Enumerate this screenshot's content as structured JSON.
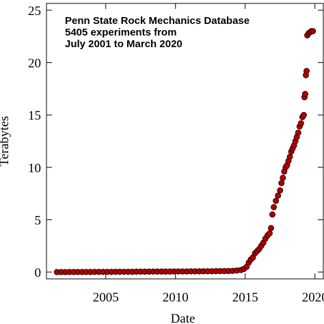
{
  "chart_data": {
    "type": "scatter",
    "title_lines": [
      "Penn State Rock Mechanics Database",
      "5405 experiments from",
      "July 2001 to March 2020"
    ],
    "x_label": "Date",
    "y_label": "Terabytes",
    "xlim": [
      2000.75,
      2020.6
    ],
    "ylim": [
      -0.65,
      25.65
    ],
    "xticks": [
      2005,
      2010,
      2015,
      2020
    ],
    "yticks": [
      0,
      5,
      10,
      15,
      20,
      25
    ],
    "color": "#b00000",
    "edge_color": "#300000",
    "x": [
      2001.5,
      2001.8,
      2002.1,
      2002.4,
      2002.7,
      2003.0,
      2003.3,
      2003.6,
      2003.9,
      2004.2,
      2004.5,
      2004.8,
      2005.1,
      2005.4,
      2005.7,
      2006.0,
      2006.3,
      2006.6,
      2006.9,
      2007.2,
      2007.5,
      2007.8,
      2008.1,
      2008.4,
      2008.7,
      2009.0,
      2009.3,
      2009.6,
      2009.9,
      2010.2,
      2010.5,
      2010.8,
      2011.1,
      2011.4,
      2011.7,
      2012.0,
      2012.3,
      2012.6,
      2012.9,
      2013.2,
      2013.5,
      2013.8,
      2014.1,
      2014.4,
      2014.7,
      2014.9,
      2015.1,
      2015.25,
      2015.4,
      2015.55,
      2015.7,
      2015.85,
      2016.0,
      2016.15,
      2016.3,
      2016.45,
      2016.6,
      2016.75,
      2016.85,
      2016.95,
      2017.05,
      2017.2,
      2017.35,
      2017.5,
      2017.6,
      2017.7,
      2017.8,
      2017.9,
      2018.0,
      2018.1,
      2018.2,
      2018.3,
      2018.4,
      2018.5,
      2018.6,
      2018.7,
      2018.8,
      2018.9,
      2019.0,
      2019.1,
      2019.2,
      2019.25,
      2019.3,
      2019.35,
      2019.4,
      2019.45,
      2019.55,
      2019.65,
      2019.75,
      2019.85
    ],
    "values": [
      0.0,
      0.0,
      0.0,
      0.01,
      0.01,
      0.01,
      0.01,
      0.01,
      0.01,
      0.02,
      0.02,
      0.02,
      0.02,
      0.02,
      0.03,
      0.03,
      0.03,
      0.03,
      0.03,
      0.04,
      0.04,
      0.04,
      0.04,
      0.05,
      0.05,
      0.05,
      0.05,
      0.05,
      0.06,
      0.06,
      0.06,
      0.06,
      0.07,
      0.07,
      0.07,
      0.08,
      0.08,
      0.08,
      0.09,
      0.09,
      0.1,
      0.1,
      0.12,
      0.15,
      0.2,
      0.3,
      0.5,
      0.9,
      1.2,
      1.4,
      1.8,
      2.0,
      2.2,
      2.5,
      2.8,
      3.2,
      3.5,
      3.7,
      4.2,
      5.5,
      6.2,
      6.8,
      7.3,
      7.8,
      8.5,
      9.0,
      9.6,
      10.0,
      10.2,
      10.6,
      11.0,
      11.5,
      11.8,
      12.1,
      12.5,
      12.9,
      13.3,
      13.9,
      14.2,
      14.8,
      15.0,
      16.7,
      17.0,
      18.8,
      19.2,
      22.6,
      22.8,
      22.9,
      23.0,
      23.0
    ]
  }
}
